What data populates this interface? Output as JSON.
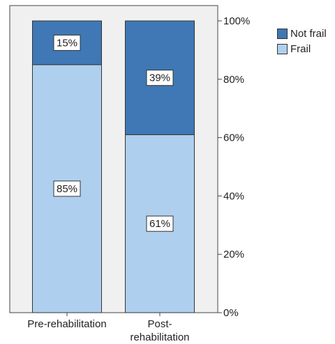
{
  "chart_data": {
    "type": "bar",
    "stacked": true,
    "categories": [
      "Pre-rehabilitation",
      "Post-\nrehabilitation"
    ],
    "series": [
      {
        "name": "Frail",
        "values": [
          85,
          61
        ],
        "color": "#aed0ee"
      },
      {
        "name": "Not frail",
        "values": [
          15,
          39
        ],
        "color": "#3f78b4"
      }
    ],
    "data_labels": [
      [
        "85%",
        "61%"
      ],
      [
        "15%",
        "39%"
      ]
    ],
    "ylim": [
      0,
      100
    ],
    "yticks": [
      "0%",
      "20%",
      "40%",
      "60%",
      "80%",
      "100%"
    ],
    "ytick_values": [
      0,
      20,
      40,
      60,
      80,
      100
    ],
    "y_axis_side": "right",
    "legend_position": "top-right",
    "plot_background": "#f0f0f0",
    "grid": false
  },
  "legend": {
    "items": [
      {
        "label": "Not frail",
        "color": "#3f78b4"
      },
      {
        "label": "Frail",
        "color": "#aed0ee"
      }
    ]
  }
}
